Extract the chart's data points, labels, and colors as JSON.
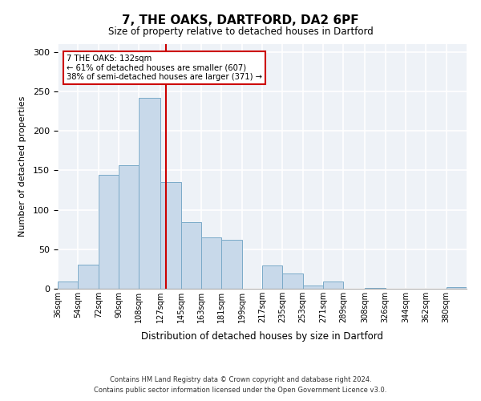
{
  "title": "7, THE OAKS, DARTFORD, DA2 6PF",
  "subtitle": "Size of property relative to detached houses in Dartford",
  "xlabel": "Distribution of detached houses by size in Dartford",
  "ylabel": "Number of detached properties",
  "bar_color": "#c8d9ea",
  "bar_edge_color": "#7aaac8",
  "vline_color": "#cc0000",
  "vline_x": 132,
  "annotation_title": "7 THE OAKS: 132sqm",
  "annotation_line1": "← 61% of detached houses are smaller (607)",
  "annotation_line2": "38% of semi-detached houses are larger (371) →",
  "bin_edges": [
    36,
    54,
    72,
    90,
    108,
    127,
    145,
    163,
    181,
    199,
    217,
    235,
    253,
    271,
    289,
    308,
    326,
    344,
    362,
    380,
    398
  ],
  "bin_counts": [
    9,
    31,
    144,
    157,
    242,
    135,
    84,
    65,
    62,
    0,
    29,
    19,
    4,
    9,
    0,
    1,
    0,
    0,
    0,
    2
  ],
  "ylim": [
    0,
    310
  ],
  "yticks": [
    0,
    50,
    100,
    150,
    200,
    250,
    300
  ],
  "footer_line1": "Contains HM Land Registry data © Crown copyright and database right 2024.",
  "footer_line2": "Contains public sector information licensed under the Open Government Licence v3.0.",
  "background_color": "#eef2f7",
  "grid_color": "#ffffff",
  "spine_color": "#aaaaaa"
}
